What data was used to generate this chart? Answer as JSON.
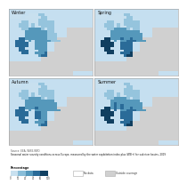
{
  "seasons": [
    "Winter",
    "Spring",
    "Autumn",
    "Summer"
  ],
  "title": "Seasonal water scarcity conditions across Europe, measured by the water exploitation index plus (WEI+) for sub river basins, 2019",
  "source": "Source: EEA, WISE-WFD",
  "legend_title": "Percentage",
  "legend_colors": [
    "#c8e0ef",
    "#89bdd8",
    "#5598bb",
    "#2a6b98",
    "#103f60"
  ],
  "no_data_color": "#ffffff",
  "outside_coverage_color": "#d0d0d0",
  "sea_color": "#c5dff0",
  "background_color": "#ffffff",
  "panel_border": "#aaaaaa",
  "text_color": "#1a1a1a"
}
